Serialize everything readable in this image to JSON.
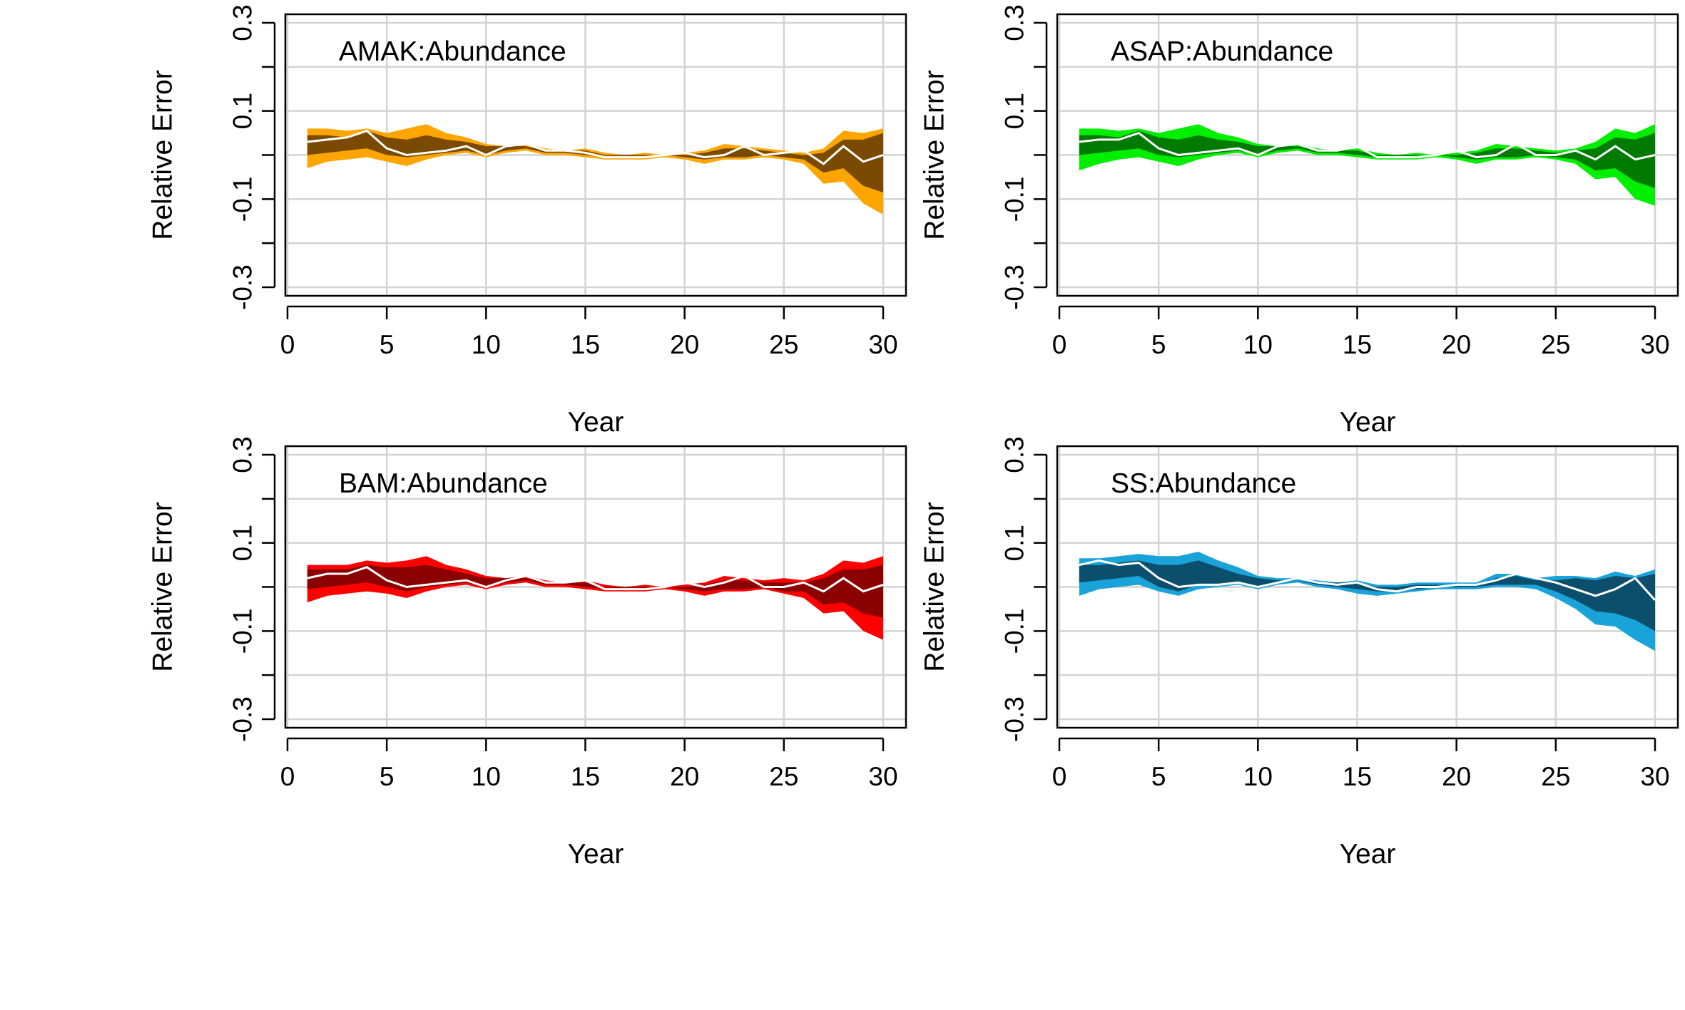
{
  "chart_data": [
    {
      "type": "area",
      "title": "AMAK:Abundance",
      "xlabel": "Year",
      "ylabel": "Relative Error",
      "xlim": [
        0,
        30
      ],
      "ylim": [
        -0.3,
        0.3
      ],
      "xticks": [
        "0",
        "5",
        "10",
        "15",
        "20",
        "25",
        "30"
      ],
      "yticks": [
        "-0.3",
        "-0.1",
        "0.1",
        "0.3"
      ],
      "grid": true,
      "colors": {
        "outer_band": "#FFA500",
        "inner_band": "#7A4A00",
        "median_line": "#FFFFFF"
      },
      "x": [
        1,
        2,
        3,
        4,
        5,
        6,
        7,
        8,
        9,
        10,
        11,
        12,
        13,
        14,
        15,
        16,
        17,
        18,
        19,
        20,
        21,
        22,
        23,
        24,
        25,
        26,
        27,
        28,
        29,
        30
      ],
      "series": [
        {
          "role": "outer_upper",
          "values": [
            0.06,
            0.06,
            0.055,
            0.06,
            0.05,
            0.06,
            0.07,
            0.05,
            0.04,
            0.025,
            0.02,
            0.025,
            0.015,
            0.01,
            0.015,
            0.005,
            0.0,
            0.005,
            0.0,
            0.005,
            0.01,
            0.025,
            0.02,
            0.015,
            0.01,
            0.005,
            0.015,
            0.055,
            0.05,
            0.06
          ]
        },
        {
          "role": "inner_upper",
          "values": [
            0.045,
            0.045,
            0.04,
            0.055,
            0.04,
            0.035,
            0.045,
            0.035,
            0.03,
            0.02,
            0.02,
            0.02,
            0.01,
            0.01,
            0.01,
            0.0,
            0.0,
            0.0,
            0.0,
            0.0,
            0.005,
            0.015,
            0.015,
            0.01,
            0.005,
            0.0,
            0.005,
            0.035,
            0.035,
            0.05
          ]
        },
        {
          "role": "median",
          "values": [
            0.03,
            0.035,
            0.04,
            0.055,
            0.015,
            0.0,
            0.005,
            0.01,
            0.02,
            0.0,
            0.02,
            0.025,
            0.01,
            0.01,
            0.005,
            -0.005,
            -0.005,
            -0.005,
            0.0,
            0.005,
            -0.005,
            0.0,
            0.02,
            0.0,
            0.005,
            0.01,
            -0.02,
            0.02,
            -0.015,
            0.0
          ]
        },
        {
          "role": "inner_lower",
          "values": [
            0.0,
            0.005,
            0.01,
            0.015,
            0.0,
            -0.005,
            0.0,
            0.005,
            0.01,
            0.0,
            0.01,
            0.015,
            0.005,
            0.005,
            0.0,
            -0.005,
            -0.005,
            -0.005,
            0.0,
            -0.005,
            -0.01,
            -0.005,
            -0.005,
            0.0,
            -0.005,
            -0.01,
            -0.04,
            -0.03,
            -0.07,
            -0.085
          ]
        },
        {
          "role": "outer_lower",
          "values": [
            -0.03,
            -0.015,
            -0.01,
            -0.005,
            -0.015,
            -0.025,
            -0.01,
            0.0,
            0.005,
            -0.005,
            0.005,
            0.01,
            0.0,
            0.0,
            -0.005,
            -0.01,
            -0.01,
            -0.01,
            -0.005,
            -0.01,
            -0.02,
            -0.01,
            -0.01,
            -0.005,
            -0.01,
            -0.02,
            -0.065,
            -0.06,
            -0.11,
            -0.135
          ]
        }
      ]
    },
    {
      "type": "area",
      "title": "ASAP:Abundance",
      "xlabel": "Year",
      "ylabel": "Relative Error",
      "xlim": [
        0,
        30
      ],
      "ylim": [
        -0.3,
        0.3
      ],
      "xticks": [
        "0",
        "5",
        "10",
        "15",
        "20",
        "25",
        "30"
      ],
      "yticks": [
        "-0.3",
        "-0.1",
        "0.1",
        "0.3"
      ],
      "grid": true,
      "colors": {
        "outer_band": "#00EE00",
        "inner_band": "#007A00",
        "median_line": "#FFFFFF"
      },
      "x": [
        1,
        2,
        3,
        4,
        5,
        6,
        7,
        8,
        9,
        10,
        11,
        12,
        13,
        14,
        15,
        16,
        17,
        18,
        19,
        20,
        21,
        22,
        23,
        24,
        25,
        26,
        27,
        28,
        29,
        30
      ],
      "series": [
        {
          "role": "outer_upper",
          "values": [
            0.06,
            0.06,
            0.055,
            0.06,
            0.05,
            0.06,
            0.07,
            0.05,
            0.04,
            0.025,
            0.02,
            0.025,
            0.015,
            0.01,
            0.015,
            0.005,
            0.0,
            0.005,
            0.0,
            0.005,
            0.01,
            0.025,
            0.02,
            0.015,
            0.01,
            0.015,
            0.03,
            0.06,
            0.05,
            0.07
          ]
        },
        {
          "role": "inner_upper",
          "values": [
            0.045,
            0.045,
            0.04,
            0.055,
            0.04,
            0.035,
            0.045,
            0.035,
            0.03,
            0.02,
            0.02,
            0.02,
            0.01,
            0.01,
            0.01,
            0.0,
            0.0,
            0.0,
            0.0,
            0.0,
            0.005,
            0.015,
            0.015,
            0.01,
            0.005,
            0.01,
            0.015,
            0.04,
            0.035,
            0.05
          ]
        },
        {
          "role": "median",
          "values": [
            0.03,
            0.035,
            0.035,
            0.05,
            0.015,
            0.0,
            0.005,
            0.01,
            0.015,
            0.0,
            0.02,
            0.025,
            0.01,
            0.01,
            0.02,
            -0.005,
            -0.005,
            -0.005,
            0.0,
            0.01,
            -0.005,
            0.0,
            0.025,
            0.0,
            0.0,
            0.01,
            -0.01,
            0.02,
            -0.01,
            0.0
          ]
        },
        {
          "role": "inner_lower",
          "values": [
            0.0,
            0.005,
            0.01,
            0.015,
            0.0,
            -0.005,
            0.0,
            0.005,
            0.01,
            0.0,
            0.01,
            0.015,
            0.005,
            0.005,
            0.0,
            -0.005,
            -0.005,
            -0.005,
            0.0,
            -0.005,
            -0.01,
            -0.005,
            -0.005,
            0.0,
            -0.005,
            -0.01,
            -0.035,
            -0.03,
            -0.06,
            -0.075
          ]
        },
        {
          "role": "outer_lower",
          "values": [
            -0.035,
            -0.02,
            -0.01,
            -0.005,
            -0.015,
            -0.025,
            -0.01,
            0.0,
            0.005,
            -0.005,
            0.005,
            0.01,
            0.0,
            0.0,
            -0.005,
            -0.01,
            -0.01,
            -0.01,
            -0.005,
            -0.01,
            -0.02,
            -0.01,
            -0.01,
            -0.005,
            -0.01,
            -0.02,
            -0.055,
            -0.05,
            -0.1,
            -0.115
          ]
        }
      ]
    },
    {
      "type": "area",
      "title": "BAM:Abundance",
      "xlabel": "Year",
      "ylabel": "Relative Error",
      "xlim": [
        0,
        30
      ],
      "ylim": [
        -0.3,
        0.3
      ],
      "xticks": [
        "0",
        "5",
        "10",
        "15",
        "20",
        "25",
        "30"
      ],
      "yticks": [
        "-0.3",
        "-0.1",
        "0.1",
        "0.3"
      ],
      "grid": true,
      "colors": {
        "outer_band": "#FF0000",
        "inner_band": "#8B0000",
        "median_line": "#FFFFFF"
      },
      "x": [
        1,
        2,
        3,
        4,
        5,
        6,
        7,
        8,
        9,
        10,
        11,
        12,
        13,
        14,
        15,
        16,
        17,
        18,
        19,
        20,
        21,
        22,
        23,
        24,
        25,
        26,
        27,
        28,
        29,
        30
      ],
      "series": [
        {
          "role": "outer_upper",
          "values": [
            0.05,
            0.05,
            0.05,
            0.06,
            0.055,
            0.06,
            0.07,
            0.05,
            0.04,
            0.025,
            0.02,
            0.025,
            0.015,
            0.01,
            0.015,
            0.005,
            0.0,
            0.005,
            0.0,
            0.005,
            0.01,
            0.025,
            0.02,
            0.015,
            0.02,
            0.015,
            0.03,
            0.06,
            0.055,
            0.07
          ]
        },
        {
          "role": "inner_upper",
          "values": [
            0.04,
            0.04,
            0.04,
            0.05,
            0.045,
            0.045,
            0.05,
            0.04,
            0.03,
            0.02,
            0.02,
            0.02,
            0.01,
            0.01,
            0.01,
            0.0,
            0.0,
            0.0,
            0.0,
            0.0,
            0.005,
            0.015,
            0.015,
            0.01,
            0.01,
            0.01,
            0.02,
            0.04,
            0.04,
            0.05
          ]
        },
        {
          "role": "median",
          "values": [
            0.02,
            0.03,
            0.03,
            0.045,
            0.015,
            0.0,
            0.005,
            0.01,
            0.015,
            0.0,
            0.015,
            0.025,
            0.01,
            0.01,
            0.015,
            -0.005,
            -0.005,
            -0.005,
            0.0,
            0.01,
            0.0,
            0.01,
            0.025,
            0.0,
            0.0,
            0.01,
            -0.01,
            0.02,
            -0.01,
            0.005
          ]
        },
        {
          "role": "inner_lower",
          "values": [
            -0.005,
            0.0,
            0.005,
            0.01,
            0.0,
            -0.01,
            0.0,
            0.005,
            0.01,
            0.0,
            0.01,
            0.015,
            0.005,
            0.005,
            0.0,
            -0.005,
            -0.005,
            -0.005,
            0.0,
            -0.005,
            -0.01,
            -0.005,
            -0.005,
            0.0,
            -0.01,
            -0.01,
            -0.04,
            -0.035,
            -0.06,
            -0.07
          ]
        },
        {
          "role": "outer_lower",
          "values": [
            -0.035,
            -0.02,
            -0.015,
            -0.01,
            -0.015,
            -0.025,
            -0.01,
            0.0,
            0.005,
            -0.005,
            0.005,
            0.01,
            0.0,
            0.0,
            -0.005,
            -0.01,
            -0.01,
            -0.01,
            -0.005,
            -0.01,
            -0.02,
            -0.01,
            -0.01,
            -0.005,
            -0.015,
            -0.025,
            -0.06,
            -0.055,
            -0.1,
            -0.12
          ]
        }
      ]
    },
    {
      "type": "area",
      "title": "SS:Abundance",
      "xlabel": "Year",
      "ylabel": "Relative Error",
      "xlim": [
        0,
        30
      ],
      "ylim": [
        -0.3,
        0.3
      ],
      "xticks": [
        "0",
        "5",
        "10",
        "15",
        "20",
        "25",
        "30"
      ],
      "yticks": [
        "-0.3",
        "-0.1",
        "0.1",
        "0.3"
      ],
      "grid": true,
      "colors": {
        "outer_band": "#1AA3D9",
        "inner_band": "#0B4F6C",
        "median_line": "#FFFFFF"
      },
      "x": [
        1,
        2,
        3,
        4,
        5,
        6,
        7,
        8,
        9,
        10,
        11,
        12,
        13,
        14,
        15,
        16,
        17,
        18,
        19,
        20,
        21,
        22,
        23,
        24,
        25,
        26,
        27,
        28,
        29,
        30
      ],
      "series": [
        {
          "role": "outer_upper",
          "values": [
            0.065,
            0.065,
            0.07,
            0.075,
            0.07,
            0.07,
            0.08,
            0.06,
            0.045,
            0.025,
            0.02,
            0.02,
            0.015,
            0.01,
            0.015,
            0.005,
            0.005,
            0.01,
            0.01,
            0.01,
            0.01,
            0.03,
            0.03,
            0.02,
            0.025,
            0.025,
            0.02,
            0.035,
            0.025,
            0.04
          ]
        },
        {
          "role": "inner_upper",
          "values": [
            0.05,
            0.05,
            0.055,
            0.06,
            0.05,
            0.05,
            0.06,
            0.045,
            0.03,
            0.02,
            0.015,
            0.015,
            0.01,
            0.01,
            0.01,
            0.0,
            0.0,
            0.005,
            0.005,
            0.005,
            0.005,
            0.02,
            0.025,
            0.015,
            0.015,
            0.02,
            0.015,
            0.025,
            0.02,
            0.03
          ]
        },
        {
          "role": "median",
          "values": [
            0.05,
            0.06,
            0.05,
            0.055,
            0.02,
            0.0,
            0.005,
            0.005,
            0.01,
            0.0,
            0.01,
            0.02,
            0.01,
            0.005,
            0.01,
            -0.005,
            -0.01,
            0.0,
            0.0,
            0.005,
            0.005,
            0.015,
            0.03,
            0.02,
            0.01,
            -0.005,
            -0.02,
            -0.005,
            0.02,
            -0.03
          ]
        },
        {
          "role": "inner_lower",
          "values": [
            0.01,
            0.015,
            0.02,
            0.025,
            0.0,
            -0.01,
            0.005,
            0.005,
            0.01,
            0.0,
            0.01,
            0.015,
            0.005,
            0.0,
            -0.005,
            -0.01,
            -0.01,
            -0.005,
            0.0,
            0.0,
            0.0,
            0.005,
            0.005,
            0.005,
            -0.01,
            -0.03,
            -0.055,
            -0.06,
            -0.075,
            -0.1
          ]
        },
        {
          "role": "outer_lower",
          "values": [
            -0.02,
            -0.005,
            0.0,
            0.005,
            -0.01,
            -0.02,
            -0.005,
            0.0,
            0.005,
            -0.005,
            0.005,
            0.01,
            0.0,
            -0.005,
            -0.015,
            -0.02,
            -0.015,
            -0.01,
            -0.005,
            -0.005,
            -0.005,
            0.0,
            0.0,
            -0.005,
            -0.025,
            -0.05,
            -0.085,
            -0.09,
            -0.12,
            -0.145
          ]
        }
      ]
    }
  ]
}
